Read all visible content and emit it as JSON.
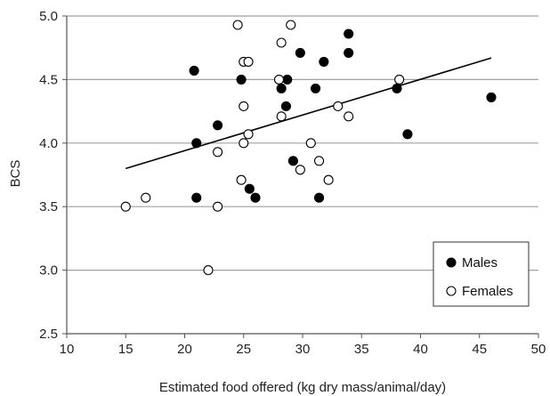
{
  "chart_data": {
    "type": "scatter",
    "xlabel": "Estimated food offered (kg dry mass/animal/day)",
    "ylabel": "BCS",
    "xlim": [
      10,
      50
    ],
    "ylim": [
      2.5,
      5.0
    ],
    "x_ticks": [
      "10",
      "15",
      "20",
      "25",
      "30",
      "35",
      "40",
      "45",
      "50"
    ],
    "y_ticks": [
      "2.5",
      "3.0",
      "3.5",
      "4.0",
      "4.5",
      "5.0"
    ],
    "grid": "horizontal",
    "legend_position": "bottom-right",
    "series": [
      {
        "name": "Males",
        "marker": "filled-circle",
        "color": "#000000",
        "points": [
          [
            20.8,
            4.57
          ],
          [
            21.0,
            4.0
          ],
          [
            21.0,
            3.57
          ],
          [
            22.8,
            4.14
          ],
          [
            24.8,
            4.5
          ],
          [
            25.5,
            3.64
          ],
          [
            26.0,
            3.57
          ],
          [
            28.2,
            4.43
          ],
          [
            28.6,
            4.29
          ],
          [
            28.7,
            4.5
          ],
          [
            29.2,
            3.86
          ],
          [
            29.8,
            4.71
          ],
          [
            31.1,
            4.43
          ],
          [
            31.4,
            3.57
          ],
          [
            31.8,
            4.64
          ],
          [
            33.9,
            4.86
          ],
          [
            33.9,
            4.71
          ],
          [
            38.0,
            4.43
          ],
          [
            38.9,
            4.07
          ],
          [
            46.0,
            4.36
          ]
        ]
      },
      {
        "name": "Females",
        "marker": "open-circle",
        "color": "#000000",
        "points": [
          [
            15.0,
            3.5
          ],
          [
            16.7,
            3.57
          ],
          [
            22.0,
            3.0
          ],
          [
            22.8,
            3.93
          ],
          [
            22.8,
            3.5
          ],
          [
            24.5,
            4.93
          ],
          [
            24.8,
            3.71
          ],
          [
            25.0,
            4.64
          ],
          [
            25.0,
            4.29
          ],
          [
            25.0,
            4.0
          ],
          [
            25.4,
            4.64
          ],
          [
            25.4,
            4.07
          ],
          [
            28.0,
            4.5
          ],
          [
            28.2,
            4.79
          ],
          [
            28.2,
            4.21
          ],
          [
            29.0,
            4.93
          ],
          [
            29.8,
            3.79
          ],
          [
            30.7,
            4.0
          ],
          [
            31.4,
            3.86
          ],
          [
            32.2,
            3.71
          ],
          [
            33.0,
            4.29
          ],
          [
            33.9,
            4.21
          ],
          [
            38.2,
            4.5
          ]
        ]
      }
    ],
    "trendline": {
      "x": [
        15,
        46
      ],
      "y": [
        3.8,
        4.67
      ]
    }
  }
}
